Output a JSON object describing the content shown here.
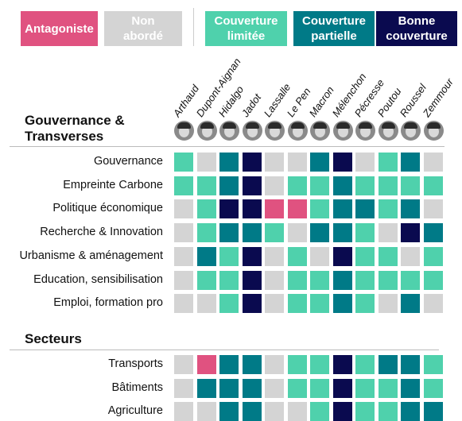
{
  "legend": [
    {
      "label": "Antagoniste",
      "color": "#e05280"
    },
    {
      "label": "Non\nabordé",
      "color": "#d4d4d4"
    },
    {
      "label": "Couverture\nlimitée",
      "color": "#4fd1ac"
    },
    {
      "label": "Couverture\npartielle",
      "color": "#007a87"
    },
    {
      "label": "Bonne\ncouverture",
      "color": "#0a0a4f"
    }
  ],
  "chart_data": {
    "type": "heatmap",
    "candidates": [
      "Arthaud",
      "Dupont-Aignan",
      "Hidalgo",
      "Jadot",
      "Lassalle",
      "Le Pen",
      "Macron",
      "Mélenchon",
      "Pécresse",
      "Poutou",
      "Roussel",
      "Zemmour"
    ],
    "levels": [
      "Antagoniste",
      "Non abordé",
      "Couverture limitée",
      "Couverture partielle",
      "Bonne couverture"
    ],
    "sections": [
      {
        "title": "Gouvernance &\nTransverses",
        "rows": [
          {
            "label": "Gouvernance",
            "values": [
              2,
              1,
              3,
              4,
              1,
              1,
              3,
              4,
              1,
              2,
              3,
              1
            ]
          },
          {
            "label": "Empreinte Carbone",
            "values": [
              2,
              2,
              3,
              4,
              1,
              2,
              2,
              3,
              2,
              2,
              2,
              2
            ]
          },
          {
            "label": "Politique économique",
            "values": [
              1,
              2,
              4,
              4,
              0,
              0,
              2,
              3,
              3,
              2,
              3,
              1
            ]
          },
          {
            "label": "Recherche & Innovation",
            "values": [
              1,
              2,
              3,
              3,
              2,
              1,
              3,
              3,
              2,
              1,
              4,
              3
            ]
          },
          {
            "label": "Urbanisme & aménagement",
            "values": [
              1,
              3,
              2,
              4,
              1,
              2,
              1,
              4,
              2,
              2,
              1,
              2
            ]
          },
          {
            "label": "Education, sensibilisation",
            "values": [
              1,
              2,
              2,
              4,
              1,
              2,
              2,
              3,
              2,
              2,
              2,
              2
            ]
          },
          {
            "label": "Emploi, formation pro",
            "values": [
              1,
              1,
              2,
              4,
              1,
              2,
              2,
              3,
              2,
              1,
              3,
              1
            ]
          }
        ]
      },
      {
        "title": "Secteurs",
        "rows": [
          {
            "label": "Transports",
            "values": [
              1,
              0,
              3,
              3,
              1,
              2,
              2,
              4,
              2,
              3,
              3,
              2
            ]
          },
          {
            "label": "Bâtiments",
            "values": [
              1,
              3,
              3,
              3,
              1,
              2,
              2,
              4,
              2,
              2,
              3,
              2
            ]
          },
          {
            "label": "Agriculture",
            "values": [
              1,
              1,
              3,
              3,
              1,
              1,
              2,
              4,
              2,
              2,
              3,
              3
            ]
          }
        ]
      }
    ]
  }
}
